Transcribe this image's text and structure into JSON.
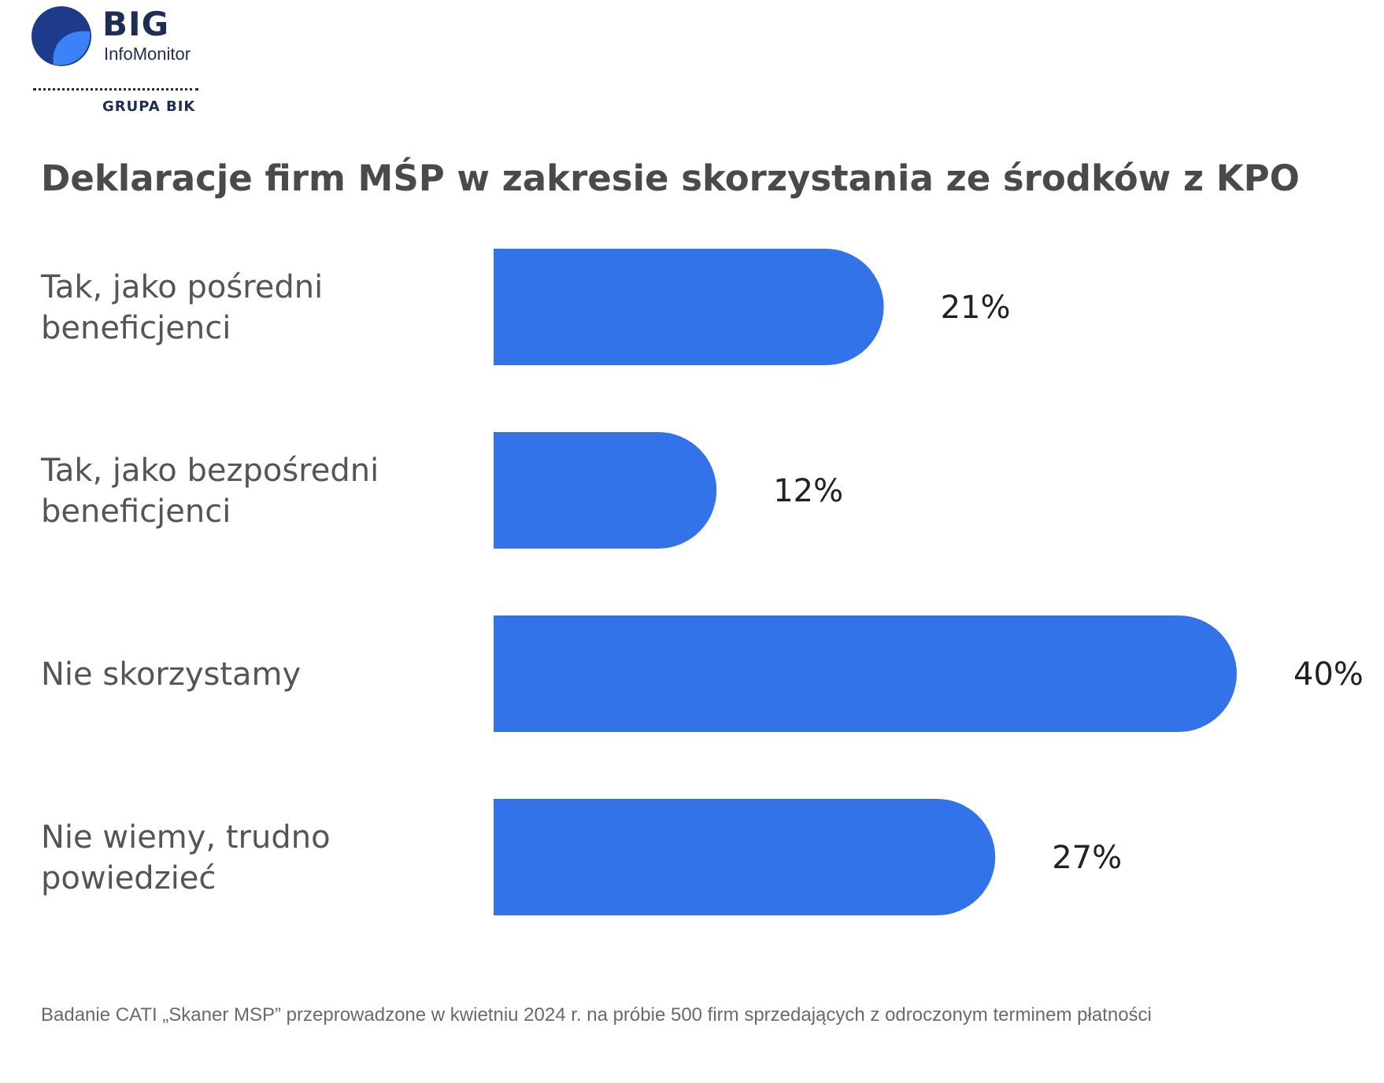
{
  "logo": {
    "name": "BIG",
    "subname": "InfoMonitor",
    "group": "GRUPA BIK",
    "colors": {
      "dark_blue": "#1e3a8a",
      "light_blue": "#3b82f6",
      "text": "#1e2d52"
    }
  },
  "colors": {
    "bar": "#3373ea",
    "title": "#4a4a4a",
    "label": "#555555"
  },
  "chart_data": {
    "type": "bar",
    "orientation": "horizontal",
    "title": "Deklaracje firm MŚP w zakresie skorzystania ze środków z KPO",
    "categories": [
      [
        "Tak, jako pośredni",
        "beneficjenci"
      ],
      [
        "Tak, jako bezpośredni",
        "beneficjenci"
      ],
      [
        "Nie skorzystamy"
      ],
      [
        "Nie wiemy, trudno",
        "powiedzieć"
      ]
    ],
    "values": [
      21,
      12,
      40,
      27
    ],
    "value_labels": [
      "21%",
      "12%",
      "40%",
      "27%"
    ],
    "unit": "%",
    "xlim": [
      0,
      40
    ],
    "grid": false,
    "legend": "none"
  },
  "footnote": "Badanie CATI „Skaner MSP” przeprowadzone w kwietniu 2024 r. na próbie 500 firm sprzedających z odroczonym terminem płatności"
}
